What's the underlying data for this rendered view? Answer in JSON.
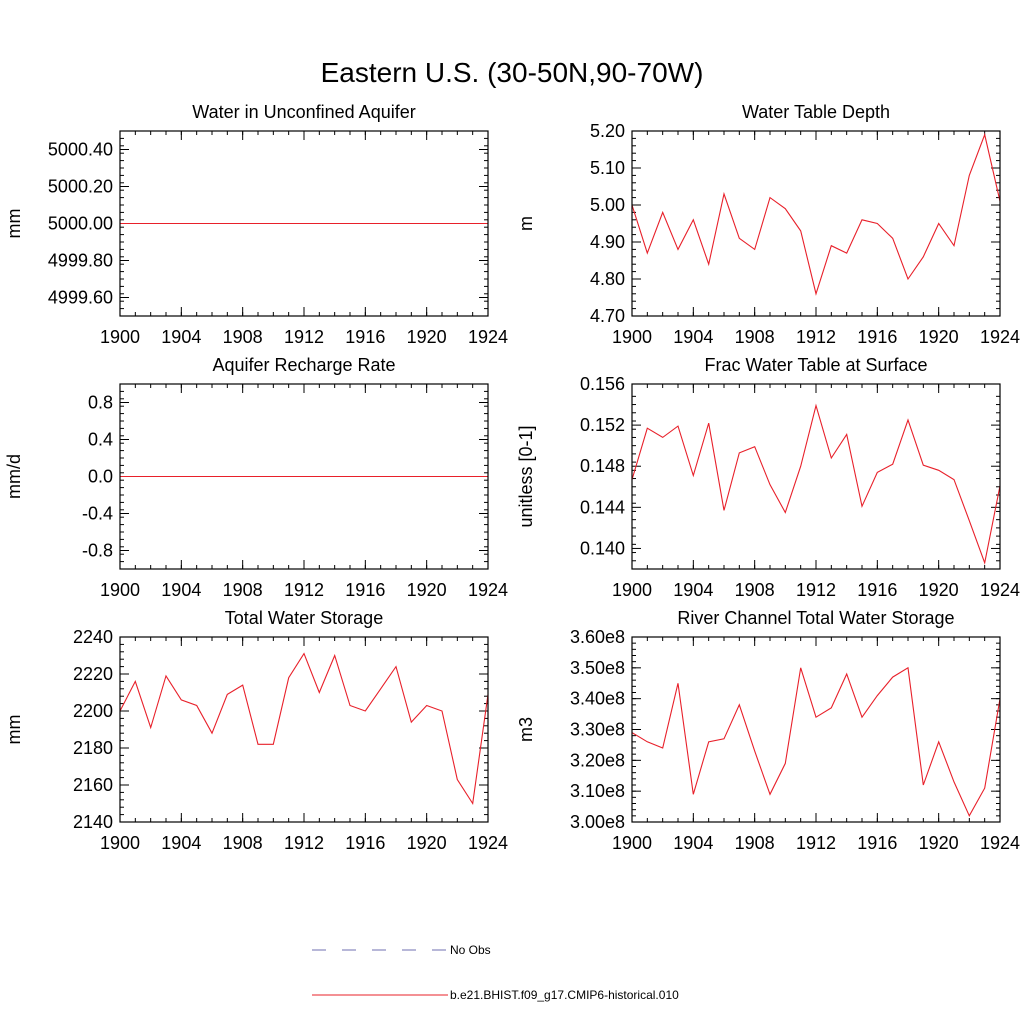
{
  "figure": {
    "title": "Eastern U.S. (30-50N,90-70W)"
  },
  "legend": {
    "entries": [
      {
        "label": "No Obs",
        "color": "#6f6fb0",
        "style": "dashed"
      },
      {
        "label": "b.e21.BHIST.f09_g17.CMIP6-historical.010",
        "color": "#e8202a",
        "style": "solid"
      }
    ]
  },
  "series_color": "#e8202a",
  "chart_data": [
    {
      "type": "line",
      "title": "Water in Unconfined Aquifer",
      "ylabel": "mm",
      "xlim": [
        1900,
        1924
      ],
      "ylim": [
        4999.5,
        5000.5
      ],
      "x_ticks": [
        1900,
        1904,
        1908,
        1912,
        1916,
        1920,
        1924
      ],
      "x_ticklabels": [
        "1900",
        "1904",
        "1908",
        "1912",
        "1916",
        "1920",
        "1924"
      ],
      "y_ticks": [
        4999.6,
        4999.8,
        5000.0,
        5000.2,
        5000.4
      ],
      "y_ticklabels": [
        "4999.60",
        "4999.80",
        "5000.00",
        "5000.20",
        "5000.40"
      ],
      "y_minor": 0.04,
      "x_minor": 1,
      "series": [
        {
          "x": [
            1900,
            1924
          ],
          "values": [
            5000.0,
            5000.0
          ]
        }
      ]
    },
    {
      "type": "line",
      "title": "Water Table Depth",
      "ylabel": "m",
      "xlim": [
        1900,
        1924
      ],
      "ylim": [
        4.7,
        5.2
      ],
      "x_ticks": [
        1900,
        1904,
        1908,
        1912,
        1916,
        1920,
        1924
      ],
      "x_ticklabels": [
        "1900",
        "1904",
        "1908",
        "1912",
        "1916",
        "1920",
        "1924"
      ],
      "y_ticks": [
        4.7,
        4.8,
        4.9,
        5.0,
        5.1,
        5.2
      ],
      "y_ticklabels": [
        "4.70",
        "4.80",
        "4.90",
        "5.00",
        "5.10",
        "5.20"
      ],
      "y_minor": 0.02,
      "x_minor": 1,
      "series": [
        {
          "x": [
            1900,
            1901,
            1902,
            1903,
            1904,
            1905,
            1906,
            1907,
            1908,
            1909,
            1910,
            1911,
            1912,
            1913,
            1914,
            1915,
            1916,
            1917,
            1918,
            1919,
            1920,
            1921,
            1922,
            1923,
            1924
          ],
          "values": [
            5.0,
            4.87,
            4.98,
            4.88,
            4.96,
            4.84,
            5.03,
            4.91,
            4.88,
            5.02,
            4.99,
            4.93,
            4.76,
            4.89,
            4.87,
            4.96,
            4.95,
            4.91,
            4.8,
            4.86,
            4.95,
            4.89,
            5.08,
            5.19,
            5.01
          ]
        }
      ]
    },
    {
      "type": "line",
      "title": "Aquifer Recharge Rate",
      "ylabel": "mm/d",
      "xlim": [
        1900,
        1924
      ],
      "ylim": [
        -1.0,
        1.0
      ],
      "x_ticks": [
        1900,
        1904,
        1908,
        1912,
        1916,
        1920,
        1924
      ],
      "x_ticklabels": [
        "1900",
        "1904",
        "1908",
        "1912",
        "1916",
        "1920",
        "1924"
      ],
      "y_ticks": [
        -0.8,
        -0.4,
        0.0,
        0.4,
        0.8
      ],
      "y_ticklabels": [
        "-0.8",
        "-0.4",
        "0.0",
        "0.4",
        "0.8"
      ],
      "y_minor": 0.08,
      "x_minor": 1,
      "series": [
        {
          "x": [
            1900,
            1924
          ],
          "values": [
            0.0,
            0.0
          ]
        }
      ]
    },
    {
      "type": "line",
      "title": "Frac Water Table at Surface",
      "ylabel": "unitless [0-1]",
      "xlim": [
        1900,
        1924
      ],
      "ylim": [
        0.138,
        0.156
      ],
      "x_ticks": [
        1900,
        1904,
        1908,
        1912,
        1916,
        1920,
        1924
      ],
      "x_ticklabels": [
        "1900",
        "1904",
        "1908",
        "1912",
        "1916",
        "1920",
        "1924"
      ],
      "y_ticks": [
        0.14,
        0.144,
        0.148,
        0.152,
        0.156
      ],
      "y_ticklabels": [
        "0.140",
        "0.144",
        "0.148",
        "0.152",
        "0.156"
      ],
      "y_minor": 0.0008,
      "x_minor": 1,
      "series": [
        {
          "x": [
            1900,
            1901,
            1902,
            1903,
            1904,
            1905,
            1906,
            1907,
            1908,
            1909,
            1910,
            1911,
            1912,
            1913,
            1914,
            1915,
            1916,
            1917,
            1918,
            1919,
            1920,
            1921,
            1922,
            1923,
            1924
          ],
          "values": [
            0.1467,
            0.1517,
            0.1508,
            0.1519,
            0.1471,
            0.1522,
            0.1437,
            0.1493,
            0.1499,
            0.1462,
            0.1435,
            0.148,
            0.1539,
            0.1488,
            0.1511,
            0.1441,
            0.1474,
            0.1482,
            0.1525,
            0.1481,
            0.1476,
            0.1467,
            0.1427,
            0.1386,
            0.1461
          ]
        }
      ]
    },
    {
      "type": "line",
      "title": "Total Water Storage",
      "ylabel": "mm",
      "xlim": [
        1900,
        1924
      ],
      "ylim": [
        2140,
        2240
      ],
      "x_ticks": [
        1900,
        1904,
        1908,
        1912,
        1916,
        1920,
        1924
      ],
      "x_ticklabels": [
        "1900",
        "1904",
        "1908",
        "1912",
        "1916",
        "1920",
        "1924"
      ],
      "y_ticks": [
        2140,
        2160,
        2180,
        2200,
        2220,
        2240
      ],
      "y_ticklabels": [
        "2140",
        "2160",
        "2180",
        "2200",
        "2220",
        "2240"
      ],
      "y_minor": 4,
      "x_minor": 1,
      "series": [
        {
          "x": [
            1900,
            1901,
            1902,
            1903,
            1904,
            1905,
            1906,
            1907,
            1908,
            1909,
            1910,
            1911,
            1912,
            1913,
            1914,
            1915,
            1916,
            1917,
            1918,
            1919,
            1920,
            1921,
            1922,
            1923,
            1924
          ],
          "values": [
            2200,
            2216,
            2191,
            2219,
            2206,
            2203,
            2188,
            2209,
            2214,
            2182,
            2182,
            2218,
            2231,
            2210,
            2230,
            2203,
            2200,
            2212,
            2224,
            2194,
            2203,
            2200,
            2163,
            2150,
            2209
          ]
        }
      ]
    },
    {
      "type": "line",
      "title": "River Channel Total Water Storage",
      "ylabel": "m3",
      "xlim": [
        1900,
        1924
      ],
      "ylim": [
        300000000,
        360000000
      ],
      "x_ticks": [
        1900,
        1904,
        1908,
        1912,
        1916,
        1920,
        1924
      ],
      "x_ticklabels": [
        "1900",
        "1904",
        "1908",
        "1912",
        "1916",
        "1920",
        "1924"
      ],
      "y_ticks": [
        300000000,
        310000000,
        320000000,
        330000000,
        340000000,
        350000000,
        360000000
      ],
      "y_ticklabels": [
        "3.00e8",
        "3.10e8",
        "3.20e8",
        "3.30e8",
        "3.40e8",
        "3.50e8",
        "3.60e8"
      ],
      "y_minor": 2000000,
      "x_minor": 1,
      "series": [
        {
          "x": [
            1900,
            1901,
            1902,
            1903,
            1904,
            1905,
            1906,
            1907,
            1908,
            1909,
            1910,
            1911,
            1912,
            1913,
            1914,
            1915,
            1916,
            1917,
            1918,
            1919,
            1920,
            1921,
            1922,
            1923,
            1924
          ],
          "values": [
            329000000,
            326000000,
            324000000,
            345000000,
            309000000,
            326000000,
            327000000,
            338000000,
            323000000,
            309000000,
            319000000,
            350000000,
            334000000,
            337000000,
            348000000,
            334000000,
            341000000,
            347000000,
            350000000,
            312000000,
            326000000,
            313000000,
            302000000,
            311000000,
            340000000
          ]
        }
      ]
    }
  ]
}
